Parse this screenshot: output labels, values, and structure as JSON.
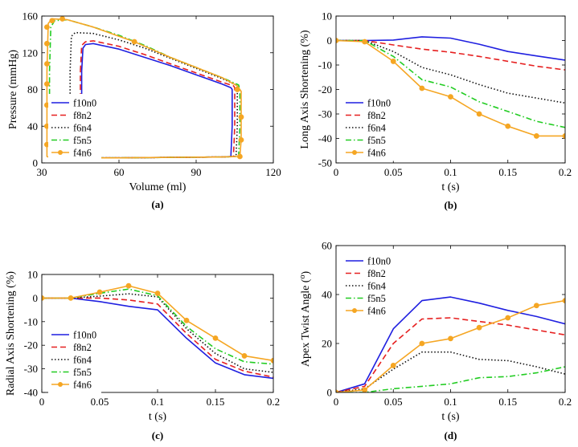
{
  "chart_data": [
    {
      "type": "line",
      "panel_label": "(a)",
      "title": "",
      "xlabel": "Volume (ml)",
      "ylabel": "Pressure (mmHg)",
      "xlim": [
        30,
        120
      ],
      "ylim": [
        0,
        160
      ],
      "xticks": [
        30,
        60,
        90,
        120
      ],
      "yticks": [
        0,
        40,
        80,
        120,
        160
      ],
      "legend_position": "center-left",
      "series": [
        {
          "name": "f10n0",
          "color": "#1f1fe0",
          "dash": "solid",
          "marker": "",
          "x": [
            45.5,
            46,
            47,
            50,
            60,
            70,
            80,
            90,
            100,
            103.5,
            104,
            104,
            103.5,
            100,
            80,
            60,
            50,
            46,
            45.5,
            45.5
          ],
          "y": [
            100,
            125,
            129,
            130,
            124,
            115,
            106,
            96,
            86,
            82,
            80,
            40,
            7,
            6.5,
            6,
            5.5,
            5.5,
            6,
            7,
            100
          ]
        },
        {
          "name": "f8n2",
          "color": "#e62020",
          "dash": "dash",
          "marker": "",
          "x": [
            45,
            45.5,
            47,
            50,
            60,
            70,
            80,
            90,
            100,
            104.5,
            105,
            105,
            104.5,
            100,
            80,
            60,
            50,
            45.5,
            45,
            45
          ],
          "y": [
            100,
            128,
            132,
            133,
            127,
            118,
            108,
            98,
            88,
            84,
            82,
            40,
            7,
            6.5,
            6,
            5.5,
            5.5,
            6,
            7,
            100
          ]
        },
        {
          "name": "f6n4",
          "color": "#111111",
          "dash": "dot",
          "marker": "",
          "x": [
            41,
            41.5,
            43,
            50,
            60,
            70,
            80,
            90,
            100,
            105.5,
            106,
            106,
            105.5,
            100,
            80,
            60,
            50,
            42,
            41,
            41
          ],
          "y": [
            100,
            138,
            142,
            141,
            134,
            125,
            114,
            103,
            92,
            85,
            82,
            40,
            7,
            6.5,
            6,
            5.5,
            5.5,
            6,
            7,
            100
          ]
        },
        {
          "name": "f5n5",
          "color": "#22cc22",
          "dash": "dashdot",
          "marker": "",
          "x": [
            33,
            33.5,
            35,
            40,
            50,
            60,
            70,
            80,
            90,
            100,
            106.5,
            107,
            107,
            106.5,
            100,
            80,
            60,
            40,
            34,
            33,
            33
          ],
          "y": [
            100,
            148,
            155,
            156,
            148,
            139,
            128,
            115,
            104,
            93,
            85,
            80,
            40,
            7,
            6.5,
            6,
            5.5,
            5.5,
            6,
            7,
            100
          ]
        },
        {
          "name": "f4n6",
          "color": "#f5a623",
          "dash": "solid",
          "marker": "o",
          "x": [
            32,
            32.5,
            34,
            40,
            50,
            60,
            66,
            70,
            80,
            90,
            100,
            106,
            107.5,
            107.5,
            107,
            100,
            80,
            60,
            40,
            33,
            32,
            32
          ],
          "y": [
            100,
            152,
            157,
            156,
            148,
            138,
            132,
            127,
            115,
            104,
            93,
            84,
            78,
            25,
            7,
            6.5,
            6,
            5.5,
            5.5,
            6,
            7,
            100
          ],
          "marker_x": [
            32,
            32,
            32,
            32,
            32,
            32,
            32,
            34,
            38,
            66,
            106,
            107.5,
            107.5,
            107
          ],
          "marker_y": [
            20,
            40,
            63,
            86,
            108,
            130,
            148,
            155,
            157,
            132,
            80,
            50,
            25,
            7
          ]
        }
      ]
    },
    {
      "type": "line",
      "panel_label": "(b)",
      "title": "",
      "xlabel": "t (s)",
      "ylabel": "Long Axis Shortening (%)",
      "xlim": [
        0,
        0.2
      ],
      "ylim": [
        -50,
        10
      ],
      "xticks": [
        0,
        0.05,
        0.1,
        0.15,
        0.2
      ],
      "yticks": [
        -50,
        -40,
        -30,
        -20,
        -10,
        0,
        10
      ],
      "legend_position": "bottom-left",
      "x": [
        0,
        0.025,
        0.05,
        0.075,
        0.1,
        0.125,
        0.15,
        0.175,
        0.2
      ],
      "series": [
        {
          "name": "f10n0",
          "color": "#1f1fe0",
          "dash": "solid",
          "marker": "",
          "values": [
            0,
            0,
            0.2,
            1.5,
            1,
            -1.5,
            -4.5,
            -6.3,
            -8
          ]
        },
        {
          "name": "f8n2",
          "color": "#e62020",
          "dash": "dash",
          "marker": "",
          "values": [
            0,
            0,
            -1.8,
            -3.5,
            -4.8,
            -6.5,
            -8.5,
            -10.5,
            -12
          ]
        },
        {
          "name": "f6n4",
          "color": "#111111",
          "dash": "dot",
          "marker": "",
          "values": [
            0,
            0,
            -4.5,
            -11,
            -14,
            -18,
            -21.5,
            -23.5,
            -25.5
          ]
        },
        {
          "name": "f5n5",
          "color": "#22cc22",
          "dash": "dashdot",
          "marker": "",
          "values": [
            0,
            0,
            -6.5,
            -16,
            -19,
            -25,
            -29,
            -33,
            -35.5
          ]
        },
        {
          "name": "f4n6",
          "color": "#f5a623",
          "dash": "solid",
          "marker": "o",
          "values": [
            0,
            -0.5,
            -8.5,
            -19.5,
            -23,
            -30,
            -35,
            -39,
            -39
          ]
        }
      ]
    },
    {
      "type": "line",
      "panel_label": "(c)",
      "title": "",
      "xlabel": "t (s)",
      "ylabel": "Radial Axis Shortening (%)",
      "xlim": [
        0,
        0.2
      ],
      "ylim": [
        -40,
        10
      ],
      "xticks": [
        0,
        0.05,
        0.1,
        0.15,
        0.2
      ],
      "yticks": [
        -40,
        -30,
        -20,
        -10,
        0,
        10
      ],
      "legend_position": "bottom-left",
      "x": [
        0,
        0.025,
        0.05,
        0.075,
        0.1,
        0.125,
        0.15,
        0.175,
        0.2
      ],
      "series": [
        {
          "name": "f10n0",
          "color": "#1f1fe0",
          "dash": "solid",
          "marker": "",
          "values": [
            0,
            0,
            -1.5,
            -3.5,
            -5,
            -17,
            -27.5,
            -32.5,
            -34
          ]
        },
        {
          "name": "f8n2",
          "color": "#e62020",
          "dash": "dash",
          "marker": "",
          "values": [
            0,
            0,
            0,
            -0.8,
            -2.5,
            -15,
            -26,
            -31,
            -33.5
          ]
        },
        {
          "name": "f6n4",
          "color": "#111111",
          "dash": "dot",
          "marker": "",
          "values": [
            0,
            0,
            0.8,
            1.8,
            0.5,
            -13,
            -23.5,
            -30,
            -31.5
          ]
        },
        {
          "name": "f5n5",
          "color": "#22cc22",
          "dash": "dashdot",
          "marker": "",
          "values": [
            0,
            0,
            2,
            3.8,
            1,
            -12,
            -21.5,
            -27,
            -28
          ]
        },
        {
          "name": "f4n6",
          "color": "#f5a623",
          "dash": "solid",
          "marker": "o",
          "values": [
            0,
            0,
            2.5,
            5.2,
            2,
            -9.5,
            -17,
            -24.5,
            -26.5
          ]
        }
      ]
    },
    {
      "type": "line",
      "panel_label": "(d)",
      "title": "",
      "xlabel": "t (s)",
      "ylabel": "Apex Twist Angle (",
      "ylabel_super": "o",
      "ylabel_end": ")",
      "xlim": [
        0,
        0.2
      ],
      "ylim": [
        0,
        60
      ],
      "xticks": [
        0,
        0.05,
        0.1,
        0.15,
        0.2
      ],
      "yticks": [
        0,
        20,
        40,
        60
      ],
      "legend_position": "top-left",
      "x": [
        0,
        0.025,
        0.05,
        0.075,
        0.1,
        0.125,
        0.15,
        0.175,
        0.2
      ],
      "series": [
        {
          "name": "f10n0",
          "color": "#1f1fe0",
          "dash": "solid",
          "marker": "",
          "values": [
            0,
            3.5,
            26,
            37.5,
            39,
            36.5,
            33.5,
            31,
            28
          ]
        },
        {
          "name": "f8n2",
          "color": "#e62020",
          "dash": "dash",
          "marker": "",
          "values": [
            0,
            2.5,
            20,
            30,
            30.5,
            29,
            27.5,
            25.5,
            23.5
          ]
        },
        {
          "name": "f6n4",
          "color": "#111111",
          "dash": "dot",
          "marker": "",
          "values": [
            0,
            1.5,
            9.5,
            16.5,
            16.5,
            13.5,
            13,
            10.5,
            7.5
          ]
        },
        {
          "name": "f5n5",
          "color": "#22cc22",
          "dash": "dashdot",
          "marker": "",
          "values": [
            0,
            0,
            1.5,
            2.5,
            3.5,
            6,
            6.5,
            8,
            10.5
          ]
        },
        {
          "name": "f4n6",
          "color": "#f5a623",
          "dash": "solid",
          "marker": "o",
          "values": [
            0,
            1,
            11,
            20,
            22,
            26.5,
            30.5,
            35.5,
            37.5
          ]
        }
      ]
    }
  ]
}
